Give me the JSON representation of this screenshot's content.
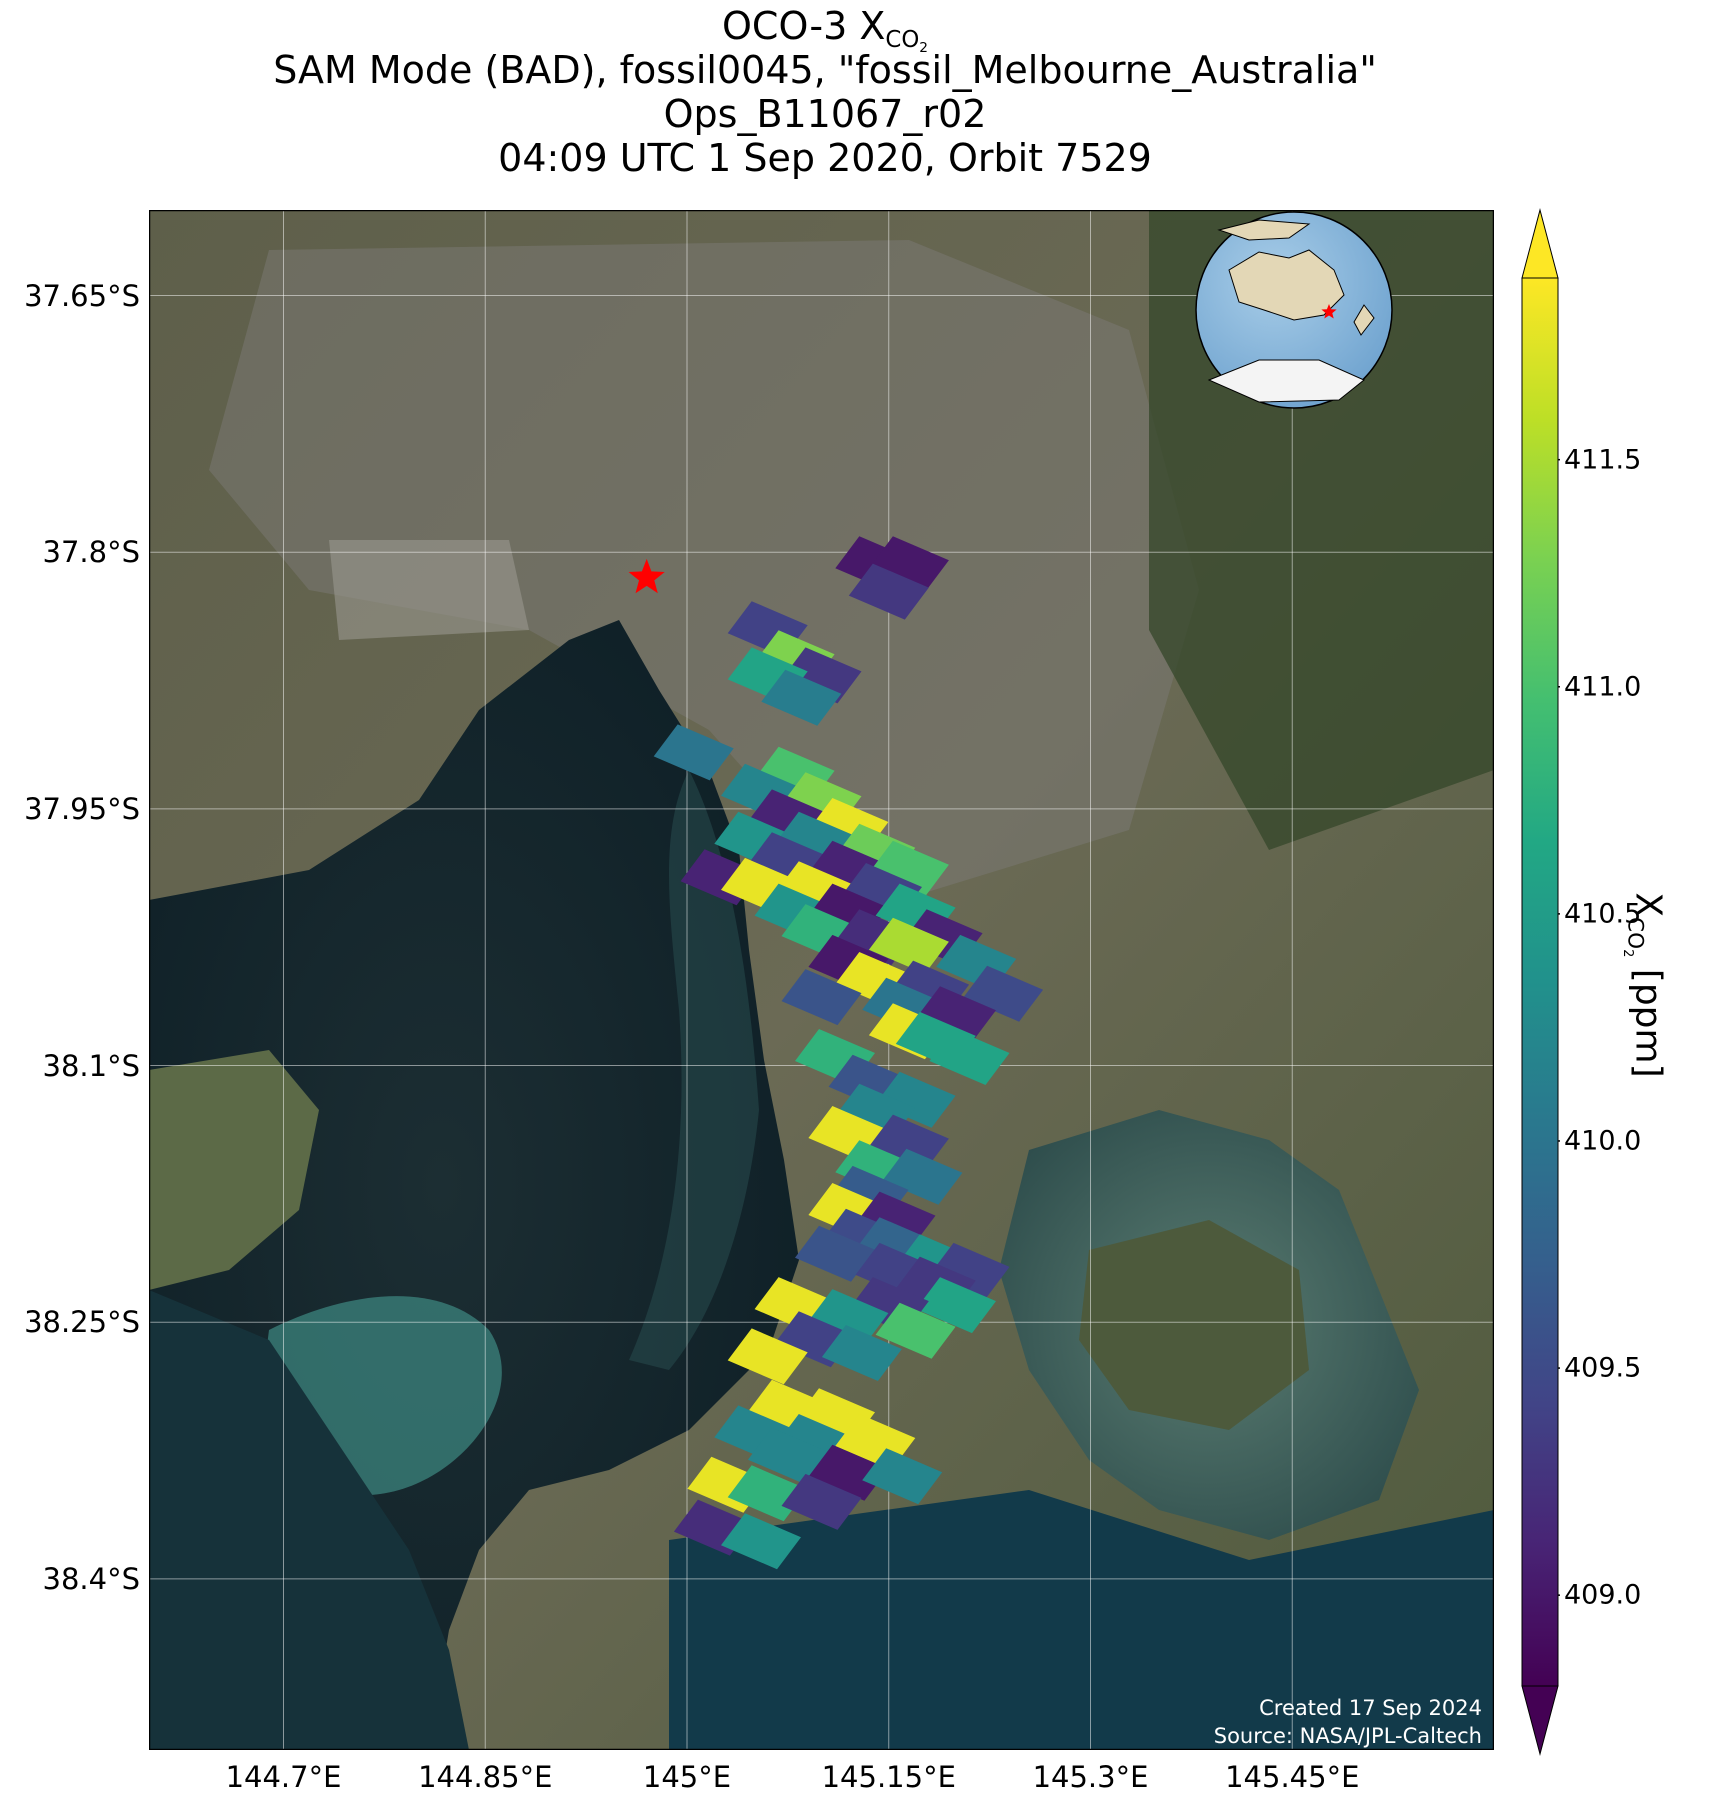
{
  "title": {
    "line1_prefix": "OCO-3 X",
    "line1_sub": "CO",
    "line1_subsub": "2",
    "line2": "SAM Mode (BAD), fossil0045, \"fossil_Melbourne_Australia\"",
    "line3": "Ops_B11067_r02",
    "line4": "04:09 UTC 1 Sep 2020, Orbit 7529"
  },
  "map": {
    "lon_ticks": [
      {
        "value": 144.7,
        "label": "144.7°E"
      },
      {
        "value": 144.85,
        "label": "144.85°E"
      },
      {
        "value": 145.0,
        "label": "145°E"
      },
      {
        "value": 145.15,
        "label": "145.15°E"
      },
      {
        "value": 145.3,
        "label": "145.3°E"
      },
      {
        "value": 145.45,
        "label": "145.45°E"
      }
    ],
    "lat_ticks": [
      {
        "value": -37.65,
        "label": "37.65°S"
      },
      {
        "value": -37.8,
        "label": "37.8°S"
      },
      {
        "value": -37.95,
        "label": "37.95°S"
      },
      {
        "value": -38.1,
        "label": "38.1°S"
      },
      {
        "value": -38.25,
        "label": "38.25°S"
      },
      {
        "value": -38.4,
        "label": "38.4°S"
      }
    ],
    "lon_range": [
      144.6,
      145.6
    ],
    "lat_range": [
      -38.5,
      -37.6
    ],
    "target_marker": {
      "lon": 144.97,
      "lat": -37.815,
      "symbol": "star",
      "color": "#ff0000"
    },
    "grid": true,
    "inset_globe": {
      "position": "top-right",
      "marker_color": "#ff0000"
    }
  },
  "watermark": {
    "line1": "Created 17 Sep 2024",
    "line2": "Source: NASA/JPL-Caltech"
  },
  "colorbar": {
    "colormap": "viridis",
    "min": 408.8,
    "max": 411.9,
    "ticks": [
      409.0,
      409.5,
      410.0,
      410.5,
      411.0,
      411.5
    ],
    "tick_labels": [
      "409.0",
      "409.5",
      "410.0",
      "410.5",
      "411.0",
      "411.5"
    ],
    "label_prefix": "X",
    "label_sub": "CO",
    "label_subsub": "2",
    "label_suffix": " [ppm]",
    "extend": "both"
  },
  "chart_data": {
    "type": "scatter",
    "x_axis": "longitude",
    "y_axis": "latitude",
    "value_name": "XCO2 [ppm]",
    "soundings": [
      {
        "lon": 145.14,
        "lat": -37.807,
        "xco2": 409.0
      },
      {
        "lon": 145.165,
        "lat": -37.807,
        "xco2": 409.0
      },
      {
        "lon": 145.15,
        "lat": -37.823,
        "xco2": 409.3
      },
      {
        "lon": 145.06,
        "lat": -37.845,
        "xco2": 409.4
      },
      {
        "lon": 145.08,
        "lat": -37.862,
        "xco2": 411.3
      },
      {
        "lon": 145.1,
        "lat": -37.872,
        "xco2": 409.3
      },
      {
        "lon": 145.06,
        "lat": -37.872,
        "xco2": 410.6
      },
      {
        "lon": 145.085,
        "lat": -37.885,
        "xco2": 410.1
      },
      {
        "lon": 145.005,
        "lat": -37.917,
        "xco2": 410.0
      },
      {
        "lon": 145.08,
        "lat": -37.93,
        "xco2": 411.0
      },
      {
        "lon": 145.055,
        "lat": -37.94,
        "xco2": 410.2
      },
      {
        "lon": 145.1,
        "lat": -37.945,
        "xco2": 411.3
      },
      {
        "lon": 145.075,
        "lat": -37.955,
        "xco2": 409.1
      },
      {
        "lon": 145.12,
        "lat": -37.96,
        "xco2": 411.8
      },
      {
        "lon": 145.05,
        "lat": -37.968,
        "xco2": 410.4
      },
      {
        "lon": 145.095,
        "lat": -37.968,
        "xco2": 410.2
      },
      {
        "lon": 145.14,
        "lat": -37.975,
        "xco2": 411.2
      },
      {
        "lon": 145.075,
        "lat": -37.98,
        "xco2": 409.4
      },
      {
        "lon": 145.12,
        "lat": -37.985,
        "xco2": 409.1
      },
      {
        "lon": 145.165,
        "lat": -37.985,
        "xco2": 411.0
      },
      {
        "lon": 145.025,
        "lat": -37.99,
        "xco2": 409.1
      },
      {
        "lon": 145.055,
        "lat": -37.995,
        "xco2": 411.8
      },
      {
        "lon": 145.095,
        "lat": -37.997,
        "xco2": 411.8
      },
      {
        "lon": 145.145,
        "lat": -37.998,
        "xco2": 409.4
      },
      {
        "lon": 145.08,
        "lat": -38.01,
        "xco2": 410.4
      },
      {
        "lon": 145.12,
        "lat": -38.01,
        "xco2": 409.0
      },
      {
        "lon": 145.17,
        "lat": -38.01,
        "xco2": 410.6
      },
      {
        "lon": 145.1,
        "lat": -38.022,
        "xco2": 410.8
      },
      {
        "lon": 145.14,
        "lat": -38.025,
        "xco2": 409.2
      },
      {
        "lon": 145.19,
        "lat": -38.025,
        "xco2": 409.1
      },
      {
        "lon": 145.165,
        "lat": -38.03,
        "xco2": 411.5
      },
      {
        "lon": 145.12,
        "lat": -38.04,
        "xco2": 409.0
      },
      {
        "lon": 145.215,
        "lat": -38.04,
        "xco2": 410.2
      },
      {
        "lon": 145.14,
        "lat": -38.05,
        "xco2": 411.8
      },
      {
        "lon": 145.18,
        "lat": -38.055,
        "xco2": 409.4
      },
      {
        "lon": 145.235,
        "lat": -38.058,
        "xco2": 409.5
      },
      {
        "lon": 145.1,
        "lat": -38.06,
        "xco2": 409.6
      },
      {
        "lon": 145.16,
        "lat": -38.065,
        "xco2": 410.0
      },
      {
        "lon": 145.2,
        "lat": -38.07,
        "xco2": 409.1
      },
      {
        "lon": 145.165,
        "lat": -38.08,
        "xco2": 411.8
      },
      {
        "lon": 145.185,
        "lat": -38.085,
        "xco2": 410.6
      },
      {
        "lon": 145.11,
        "lat": -38.095,
        "xco2": 410.8
      },
      {
        "lon": 145.21,
        "lat": -38.095,
        "xco2": 410.6
      },
      {
        "lon": 145.135,
        "lat": -38.11,
        "xco2": 409.6
      },
      {
        "lon": 145.17,
        "lat": -38.12,
        "xco2": 410.2
      },
      {
        "lon": 145.14,
        "lat": -38.127,
        "xco2": 410.2
      },
      {
        "lon": 145.12,
        "lat": -38.14,
        "xco2": 411.8
      },
      {
        "lon": 145.165,
        "lat": -38.145,
        "xco2": 409.4
      },
      {
        "lon": 145.14,
        "lat": -38.16,
        "xco2": 410.8
      },
      {
        "lon": 145.175,
        "lat": -38.165,
        "xco2": 410.0
      },
      {
        "lon": 145.135,
        "lat": -38.175,
        "xco2": 409.7
      },
      {
        "lon": 145.12,
        "lat": -38.185,
        "xco2": 411.8
      },
      {
        "lon": 145.155,
        "lat": -38.19,
        "xco2": 409.1
      },
      {
        "lon": 145.13,
        "lat": -38.2,
        "xco2": 409.5
      },
      {
        "lon": 145.155,
        "lat": -38.205,
        "xco2": 409.8
      },
      {
        "lon": 145.11,
        "lat": -38.21,
        "xco2": 409.6
      },
      {
        "lon": 145.185,
        "lat": -38.215,
        "xco2": 410.4
      },
      {
        "lon": 145.155,
        "lat": -38.22,
        "xco2": 409.4
      },
      {
        "lon": 145.21,
        "lat": -38.22,
        "xco2": 409.4
      },
      {
        "lon": 145.185,
        "lat": -38.228,
        "xco2": 409.3
      },
      {
        "lon": 145.2,
        "lat": -38.24,
        "xco2": 410.6
      },
      {
        "lon": 145.08,
        "lat": -38.24,
        "xco2": 411.8
      },
      {
        "lon": 145.15,
        "lat": -38.24,
        "xco2": 409.3
      },
      {
        "lon": 145.12,
        "lat": -38.247,
        "xco2": 410.4
      },
      {
        "lon": 145.17,
        "lat": -38.255,
        "xco2": 411.0
      },
      {
        "lon": 145.095,
        "lat": -38.26,
        "xco2": 409.4
      },
      {
        "lon": 145.13,
        "lat": -38.268,
        "xco2": 410.2
      },
      {
        "lon": 145.06,
        "lat": -38.27,
        "xco2": 411.8
      },
      {
        "lon": 145.075,
        "lat": -38.3,
        "xco2": 411.8
      },
      {
        "lon": 145.11,
        "lat": -38.305,
        "xco2": 411.8
      },
      {
        "lon": 145.05,
        "lat": -38.315,
        "xco2": 410.2
      },
      {
        "lon": 145.095,
        "lat": -38.32,
        "xco2": 410.2
      },
      {
        "lon": 145.14,
        "lat": -38.32,
        "xco2": 411.8
      },
      {
        "lon": 145.075,
        "lat": -38.328,
        "xco2": 410.2
      },
      {
        "lon": 145.12,
        "lat": -38.338,
        "xco2": 409.0
      },
      {
        "lon": 145.16,
        "lat": -38.34,
        "xco2": 410.2
      },
      {
        "lon": 145.03,
        "lat": -38.345,
        "xco2": 411.8
      },
      {
        "lon": 145.06,
        "lat": -38.35,
        "xco2": 410.8
      },
      {
        "lon": 145.1,
        "lat": -38.355,
        "xco2": 409.3
      },
      {
        "lon": 145.02,
        "lat": -38.37,
        "xco2": 409.2
      },
      {
        "lon": 145.055,
        "lat": -38.378,
        "xco2": 410.4
      }
    ]
  }
}
